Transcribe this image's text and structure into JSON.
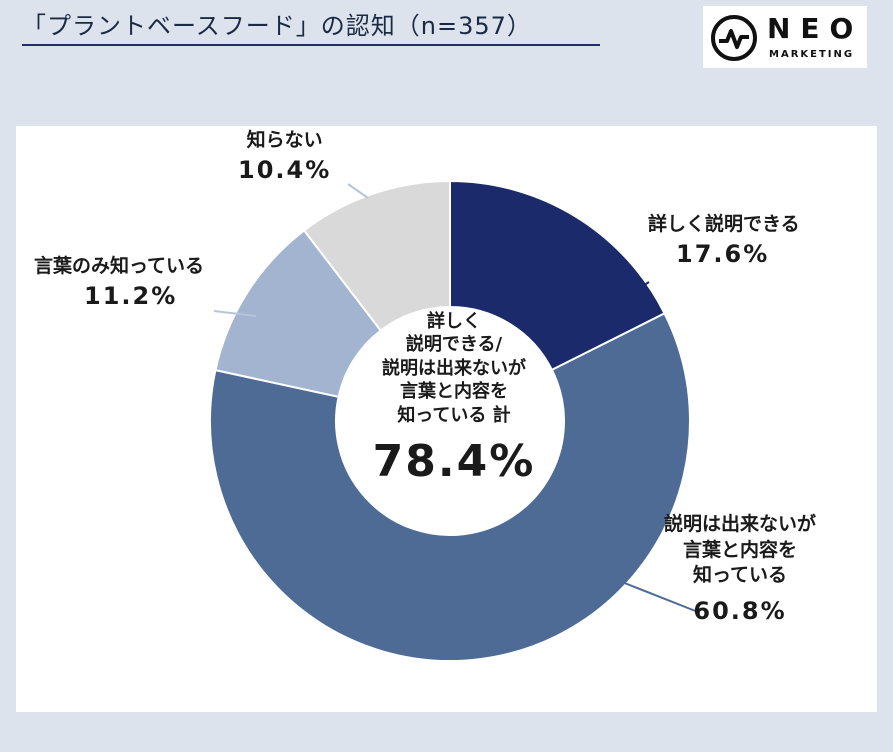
{
  "header": {
    "title": "「プラントベースフード」の認知（n=357）",
    "logo_main": "NEO",
    "logo_sub": "MARKETING"
  },
  "chart_data": {
    "type": "pie",
    "variant": "donut",
    "series": [
      {
        "name": "詳しく説明できる",
        "value": 17.6,
        "value_label": "17.6%",
        "color": "#1b2a6b"
      },
      {
        "name": "説明は出来ないが言葉と内容を知っている",
        "label_lines": [
          "説明は出来ないが",
          "言葉と内容を",
          "知っている"
        ],
        "value": 60.8,
        "value_label": "60.8%",
        "color": "#4e6b96"
      },
      {
        "name": "言葉のみ知っている",
        "value": 11.2,
        "value_label": "11.2%",
        "color": "#a2b4cf"
      },
      {
        "name": "知らない",
        "value": 10.4,
        "value_label": "10.4%",
        "color": "#d9d9d9"
      }
    ],
    "center": {
      "lines": [
        "詳しく",
        "説明できる/",
        "説明は出来ないが",
        "言葉と内容を",
        "知っている 計"
      ],
      "total": "78.4%"
    },
    "legend": "none"
  }
}
